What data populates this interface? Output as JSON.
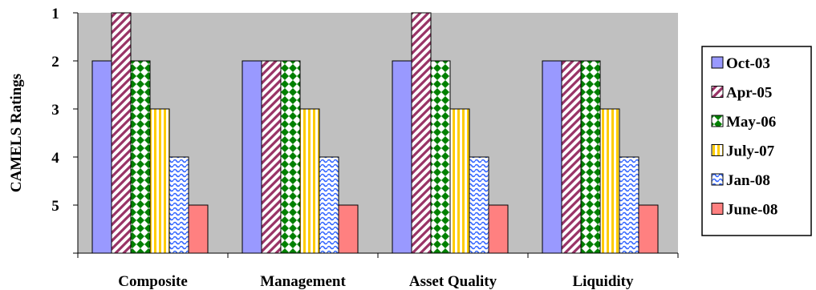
{
  "chart_data": {
    "type": "bar",
    "categories": [
      "Composite",
      "Management",
      "Asset Quality",
      "Liquidity"
    ],
    "series": [
      {
        "name": "Oct-03",
        "values": [
          2,
          2,
          2,
          2
        ],
        "color": "#9999ff",
        "pattern": "solid"
      },
      {
        "name": "Apr-05",
        "values": [
          1,
          2,
          1,
          2
        ],
        "color": "#993366",
        "pattern": "diagonal-stripes"
      },
      {
        "name": "May-06",
        "values": [
          2,
          2,
          2,
          2
        ],
        "color": "#008000",
        "pattern": "diamond-checker"
      },
      {
        "name": "July-07",
        "values": [
          3,
          3,
          3,
          3
        ],
        "color": "#ffcc00",
        "pattern": "vertical-stripes"
      },
      {
        "name": "Jan-08",
        "values": [
          4,
          4,
          4,
          4
        ],
        "color": "#3366ff",
        "pattern": "wave"
      },
      {
        "name": "June-08",
        "values": [
          5,
          5,
          5,
          5
        ],
        "color": "#ff8080",
        "pattern": "solid"
      }
    ],
    "ylabel": "CAMELS Ratings",
    "yticks": [
      1,
      2,
      3,
      4,
      5
    ],
    "ylim": [
      1,
      6
    ],
    "y_inverted": true,
    "bar_baseline": 6,
    "grid": false,
    "plot_background": "#c0c0c0",
    "legend_position": "right"
  }
}
